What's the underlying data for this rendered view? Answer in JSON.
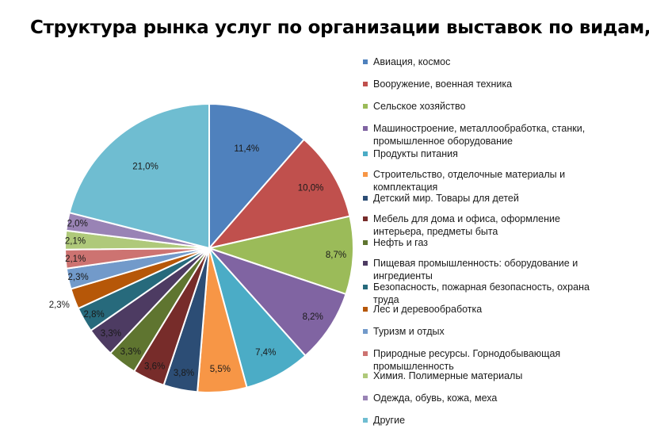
{
  "chart_data": {
    "type": "pie",
    "title": "Структура рынка услуг по организации выставок по видам, %",
    "categories": [
      "Авиация, космос",
      "Вооружение, военная техника",
      "Сельское хозяйство",
      "Машиностроение, металлообработка, станки, промышленное оборудование",
      "Продукты питания",
      "Строительство, отделочные материалы и комплектация",
      "Детский мир. Товары для детей",
      "Мебель для дома и офиса, оформление интерьера, предметы быта",
      "Нефть и газ",
      "Пищевая промышленность: оборудование и ингредиенты",
      "Безопасность, пожарная безопасность, охрана труда",
      "Лес и деревообработка",
      "Туризм и отдых",
      "Природные ресурсы. Горнодобывающая промышленность",
      "Химия. Полимерные материалы",
      "Одежда, обувь, кожа, меха",
      "Другие"
    ],
    "values": [
      11.4,
      10.0,
      8.7,
      8.2,
      7.4,
      5.5,
      3.8,
      3.6,
      3.3,
      3.3,
      2.8,
      2.3,
      2.3,
      2.1,
      2.1,
      2.0,
      21.0
    ],
    "value_labels": [
      "11,4%",
      "10,0%",
      "8,7%",
      "8,2%",
      "7,4%",
      "5,5%",
      "3,8%",
      "3,6%",
      "3,3%",
      "3,3%",
      "2,8%",
      "2,3%",
      "2,3%",
      "2,1%",
      "2,1%",
      "2,0%",
      "21,0%"
    ],
    "colors": [
      "#4F81BD",
      "#C0504D",
      "#9BBB59",
      "#8064A2",
      "#4BACC6",
      "#F79646",
      "#2C4D75",
      "#772C2A",
      "#5F7530",
      "#4D3B62",
      "#276A7C",
      "#B65708",
      "#729ACA",
      "#CD7371",
      "#AFC97A",
      "#9983B5",
      "#6FBDD1"
    ],
    "start_angle": "12 o'clock, clockwise",
    "legend_position": "right"
  }
}
